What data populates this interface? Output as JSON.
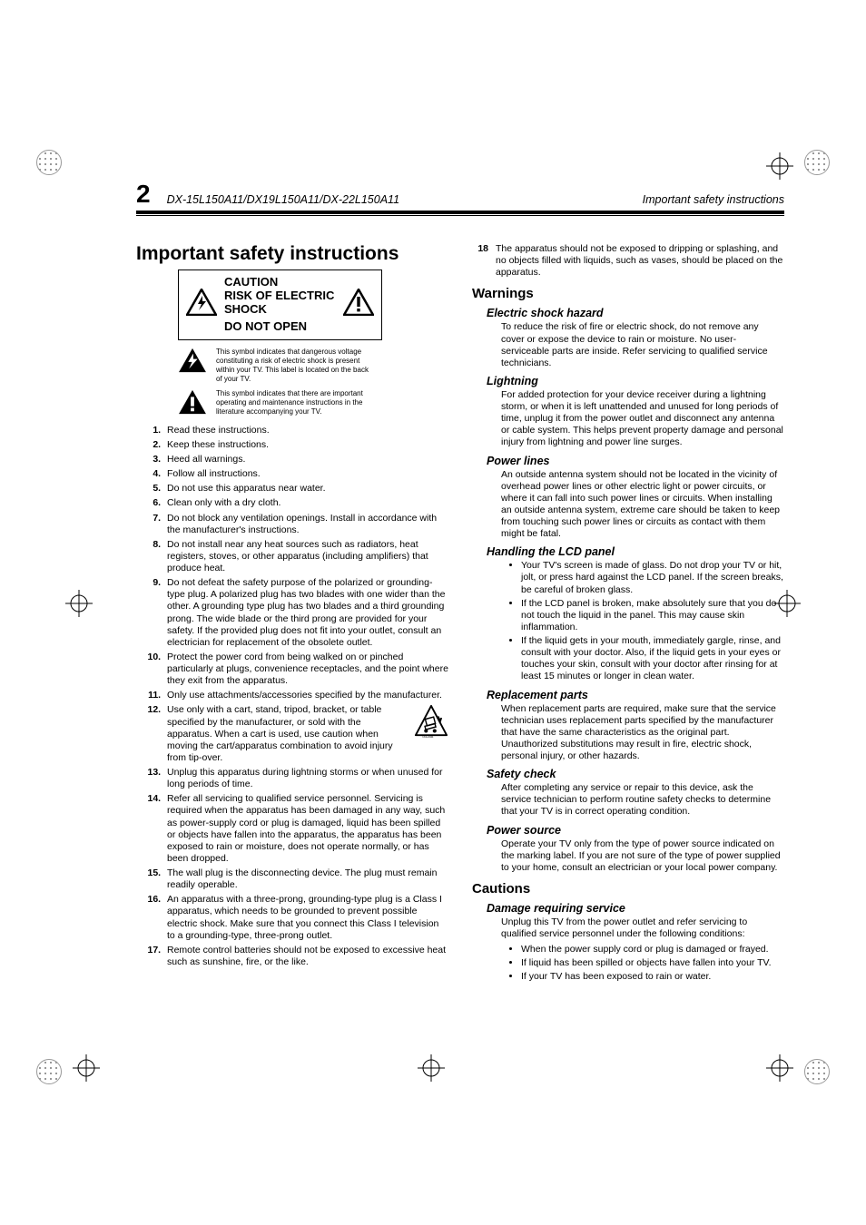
{
  "page_number": "2",
  "model_line": "DX-15L150A11/DX19L150A11/DX-22L150A11",
  "header_right": "Important safety instructions",
  "main_heading": "Important safety instructions",
  "caution": {
    "line1": "CAUTION",
    "line2": "RISK OF ELECTRIC SHOCK",
    "line3": "DO NOT OPEN"
  },
  "symbol_bolt_text": "This symbol indicates that dangerous voltage constituting a risk of electric shock is present within your TV. This label is located on the back of your TV.",
  "symbol_excl_text": "This symbol indicates that there are important operating and maintenance instructions in the literature accompanying your TV.",
  "instructions": [
    "Read these instructions.",
    "Keep these instructions.",
    "Heed all warnings.",
    "Follow all instructions.",
    "Do not use this apparatus near water.",
    "Clean only with a dry cloth.",
    "Do not block any ventilation openings. Install in accordance with the manufacturer's instructions.",
    "Do not install near any heat sources such as radiators, heat registers, stoves, or other apparatus (including amplifiers) that produce heat.",
    "Do not defeat the safety purpose of the polarized or grounding-type plug. A polarized plug has two blades with one wider than the other. A grounding type plug has two blades and a third grounding prong. The wide blade or the third prong are provided for your safety. If the provided plug does not fit into your outlet, consult an electrician for replacement of the obsolete outlet.",
    "Protect the power cord from being walked on or pinched particularly at plugs, convenience receptacles, and the point where they exit from the apparatus.",
    "Only use attachments/accessories specified by the manufacturer.",
    "Use only with a cart, stand, tripod, bracket, or table specified by the manufacturer, or sold with the apparatus. When a cart is used, use caution when moving the cart/apparatus combination to avoid injury from tip-over.",
    "Unplug this apparatus during lightning storms or when unused for long periods of time.",
    "Refer all servicing to qualified service personnel. Servicing is required when the apparatus has been damaged in any way, such as power-supply cord or plug is damaged, liquid has been spilled or objects have fallen into the apparatus, the apparatus has been exposed to rain or moisture, does not operate normally, or has been dropped.",
    "The wall plug is the disconnecting device. The plug must remain readily operable.",
    "An apparatus with a three-prong, grounding-type plug is a Class I apparatus, which needs to be grounded to prevent possible electric shock. Make sure that you connect this Class I television to a grounding-type, three-prong outlet.",
    "Remote control batteries should not be exposed to excessive heat such as sunshine, fire, or the like."
  ],
  "instruction_18": "The apparatus should not be exposed to dripping or splashing, and no objects filled with liquids, such as vases, should be placed on the apparatus.",
  "warnings_heading": "Warnings",
  "warnings": {
    "electric_shock": {
      "title": "Electric shock hazard",
      "body": "To reduce the risk of fire or electric shock, do not remove any cover or expose the device to rain or moisture. No user-serviceable parts are inside. Refer servicing to qualified service technicians."
    },
    "lightning": {
      "title": "Lightning",
      "body": "For added protection for your device receiver during a lightning storm, or when it is left unattended and unused for long periods of time, unplug it from the power outlet and disconnect any antenna or cable system. This helps prevent property damage and personal injury from lightning and power line surges."
    },
    "power_lines": {
      "title": "Power lines",
      "body": "An outside antenna system should not be located in the vicinity of overhead power lines or other electric light or power circuits, or where it can fall into such power lines or circuits. When installing an outside antenna system, extreme care should be taken to keep from touching such power lines or circuits as contact with them might be fatal."
    },
    "lcd_panel": {
      "title": "Handling the LCD panel",
      "bullets": [
        "Your TV's screen is made of glass. Do not drop your TV or hit, jolt, or press hard against the LCD panel. If the screen breaks, be careful of broken glass.",
        "If the LCD panel is broken, make absolutely sure that you do not touch the liquid in the panel. This may cause skin inflammation.",
        "If the liquid gets in your mouth, immediately gargle, rinse, and consult with your doctor. Also, if the liquid gets in your eyes or touches your skin, consult with your doctor after rinsing for at least 15 minutes or longer in clean water."
      ]
    },
    "replacement_parts": {
      "title": "Replacement parts",
      "body": "When replacement parts are required, make sure that the service technician uses replacement parts specified by the manufacturer that have the same characteristics as the original part. Unauthorized substitutions may result in fire, electric shock, personal injury, or other hazards."
    },
    "safety_check": {
      "title": "Safety check",
      "body": "After completing any service or repair to this device, ask the service technician to perform routine safety checks to determine that your TV is in correct operating condition."
    },
    "power_source": {
      "title": "Power source",
      "body": "Operate your TV only from the type of power source indicated on the marking label. If you are not sure of the type of power supplied to your home, consult an electrician or your local power company."
    }
  },
  "cautions_heading": "Cautions",
  "cautions": {
    "damage": {
      "title": "Damage requiring service",
      "body": "Unplug this TV from the power outlet and refer servicing to qualified service personnel under the following conditions:",
      "bullets": [
        "When the power supply cord or plug is damaged or frayed.",
        "If liquid has been spilled or objects have fallen into your TV.",
        "If your TV has been exposed to rain or water."
      ]
    }
  },
  "cart_symbol_label": "i3125A"
}
